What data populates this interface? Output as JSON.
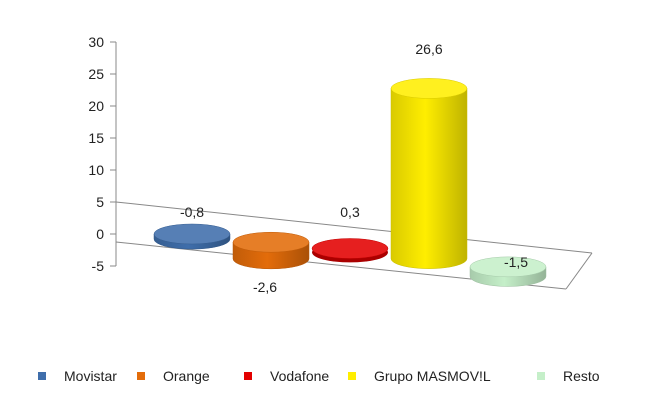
{
  "chart_data": {
    "type": "bar",
    "categories": [
      "Movistar",
      "Orange",
      "Vodafone",
      "Grupo MASMOV!L",
      "Resto"
    ],
    "values": [
      -0.8,
      -2.6,
      0.3,
      26.6,
      -1.5
    ],
    "value_labels": [
      "-0,8",
      "-2,6",
      "0,3",
      "26,6",
      "-1,5"
    ],
    "colors": [
      "#3f6eab",
      "#e36c0a",
      "#e30000",
      "#ffee00",
      "#c5efc9"
    ],
    "yticks": [
      "30",
      "25",
      "20",
      "15",
      "10",
      "5",
      "0",
      "-5"
    ],
    "ylim": [
      -5,
      30
    ],
    "grid": false,
    "legend_position": "bottom",
    "style": "3d-cylinder"
  }
}
